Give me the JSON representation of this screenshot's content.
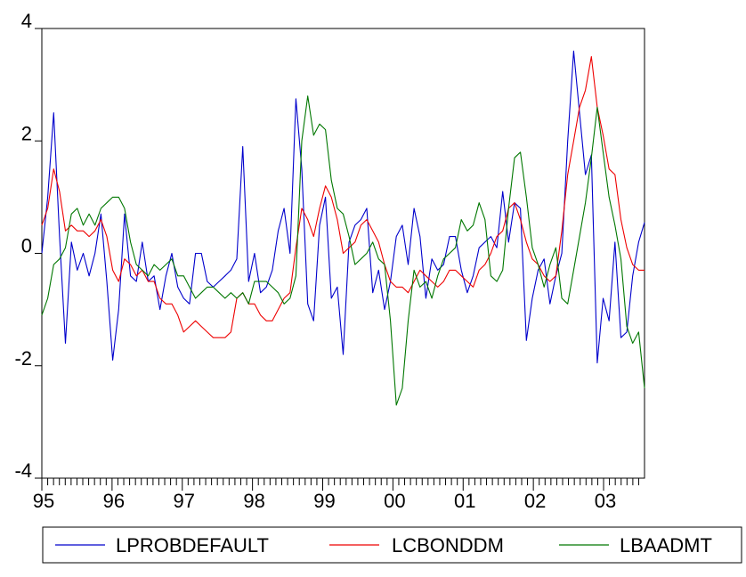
{
  "chart_data": {
    "type": "line",
    "title": "",
    "xlabel": "",
    "ylabel": "",
    "ylim": [
      -4,
      4
    ],
    "yticks": [
      -4,
      -2,
      0,
      2,
      4
    ],
    "yticklabels": [
      "-4",
      "-2",
      "0",
      "2",
      "4"
    ],
    "xlim": [
      1995.0,
      2003.583
    ],
    "xticks": [
      1995,
      1996,
      1997,
      1998,
      1999,
      2000,
      2001,
      2002,
      2003
    ],
    "xticklabels": [
      "95",
      "96",
      "97",
      "98",
      "99",
      "00",
      "01",
      "02",
      "03"
    ],
    "grid": false,
    "legend_position": "bottom",
    "colors": {
      "LPROBDEFAULT": "#0000cc",
      "LCBONDDM": "#ee0000",
      "LBAADMT": "#007700"
    },
    "series": [
      {
        "name": "LPROBDEFAULT",
        "values": [
          0.0,
          1.0,
          2.5,
          0.3,
          -1.6,
          0.2,
          -0.3,
          0.0,
          -0.4,
          0.0,
          0.7,
          -0.5,
          -1.9,
          -1.0,
          0.7,
          -0.4,
          -0.5,
          0.2,
          -0.5,
          -0.4,
          -1.0,
          -0.4,
          0.0,
          -0.6,
          -0.8,
          -0.9,
          0.0,
          0.0,
          -0.5,
          -0.6,
          -0.5,
          -0.4,
          -0.3,
          -0.1,
          1.9,
          -0.5,
          0.0,
          -0.7,
          -0.6,
          -0.3,
          0.4,
          0.8,
          0.0,
          2.75,
          1.5,
          -0.9,
          -1.2,
          0.5,
          1.0,
          -0.8,
          -0.6,
          -1.8,
          0.2,
          0.5,
          0.6,
          0.8,
          -0.7,
          -0.3,
          -1.0,
          -0.5,
          0.3,
          0.5,
          -0.2,
          0.8,
          0.3,
          -0.8,
          -0.1,
          -0.3,
          -0.2,
          0.3,
          0.3,
          -0.3,
          -0.7,
          -0.4,
          0.1,
          0.2,
          0.3,
          0.1,
          1.1,
          0.2,
          0.9,
          0.8,
          -1.55,
          -0.8,
          -0.3,
          -0.1,
          -0.9,
          -0.4,
          0.0,
          2.0,
          3.6,
          2.5,
          1.4,
          1.75,
          -1.95,
          -0.8,
          -1.2,
          0.2,
          -1.5,
          -1.4,
          -0.4,
          0.2,
          0.55
        ]
      },
      {
        "name": "LCBONDDM",
        "values": [
          0.5,
          0.8,
          1.5,
          1.1,
          0.4,
          0.5,
          0.4,
          0.4,
          0.3,
          0.4,
          0.6,
          0.3,
          -0.3,
          -0.5,
          -0.1,
          -0.2,
          -0.4,
          -0.3,
          -0.5,
          -0.5,
          -0.8,
          -0.9,
          -0.9,
          -1.1,
          -1.4,
          -1.3,
          -1.2,
          -1.3,
          -1.4,
          -1.5,
          -1.5,
          -1.5,
          -1.4,
          -0.8,
          -0.7,
          -0.9,
          -0.9,
          -1.1,
          -1.2,
          -1.2,
          -1.0,
          -0.8,
          -0.7,
          0.1,
          0.8,
          0.6,
          0.3,
          0.8,
          1.2,
          1.0,
          0.6,
          0.0,
          0.1,
          0.2,
          0.5,
          0.6,
          0.4,
          0.2,
          -0.2,
          -0.5,
          -0.6,
          -0.6,
          -0.7,
          -0.5,
          -0.3,
          -0.4,
          -0.5,
          -0.6,
          -0.5,
          -0.3,
          -0.3,
          -0.4,
          -0.5,
          -0.6,
          -0.3,
          -0.2,
          0.0,
          0.3,
          0.4,
          0.8,
          0.9,
          0.6,
          0.2,
          -0.1,
          -0.2,
          -0.4,
          -0.5,
          -0.4,
          0.4,
          1.4,
          2.0,
          2.6,
          2.9,
          3.5,
          2.6,
          2.1,
          1.5,
          1.4,
          0.6,
          0.1,
          -0.2,
          -0.3,
          -0.3
        ]
      },
      {
        "name": "LBAADMT",
        "values": [
          -1.1,
          -0.8,
          -0.2,
          -0.1,
          0.1,
          0.7,
          0.8,
          0.5,
          0.7,
          0.5,
          0.8,
          0.9,
          1.0,
          1.0,
          0.8,
          0.2,
          -0.2,
          -0.3,
          -0.4,
          -0.2,
          -0.3,
          -0.2,
          -0.1,
          -0.4,
          -0.4,
          -0.6,
          -0.8,
          -0.7,
          -0.6,
          -0.6,
          -0.7,
          -0.8,
          -0.7,
          -0.8,
          -0.7,
          -0.9,
          -0.5,
          -0.5,
          -0.5,
          -0.6,
          -0.7,
          -0.9,
          -0.8,
          -0.4,
          2.0,
          2.8,
          2.1,
          2.3,
          2.2,
          1.3,
          0.8,
          0.7,
          0.3,
          -0.2,
          -0.1,
          0.0,
          0.2,
          -0.1,
          -0.2,
          -1.2,
          -2.7,
          -2.4,
          -1.2,
          -0.3,
          -0.6,
          -0.5,
          -0.8,
          -0.4,
          -0.1,
          0.0,
          0.1,
          0.6,
          0.4,
          0.5,
          0.9,
          0.6,
          -0.4,
          -0.5,
          -0.3,
          0.8,
          1.7,
          1.8,
          1.0,
          0.1,
          -0.2,
          -0.6,
          -0.2,
          0.1,
          -0.8,
          -0.9,
          -0.3,
          0.3,
          0.9,
          1.7,
          2.6,
          1.8,
          1.0,
          0.5,
          -0.1,
          -1.3,
          -1.6,
          -1.4,
          -2.4
        ]
      }
    ]
  }
}
